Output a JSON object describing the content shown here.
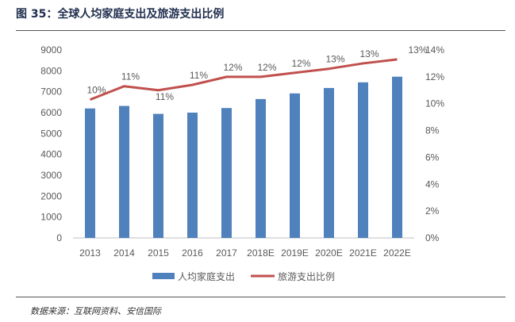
{
  "figure": {
    "title": "图 35：全球人均家庭支出及旅游支出比例",
    "source": "数据来源：互联网资料、安信国际"
  },
  "chart_data": {
    "type": "bar",
    "categories": [
      "2013",
      "2014",
      "2015",
      "2016",
      "2017",
      "2018E",
      "2019E",
      "2020E",
      "2021E",
      "2022E"
    ],
    "series": [
      {
        "name": "人均家庭支出",
        "type": "bar",
        "axis": "left",
        "color": "#4f81bd",
        "values": [
          6200,
          6320,
          5940,
          6000,
          6220,
          6650,
          6920,
          7180,
          7450,
          7720
        ]
      },
      {
        "name": "旅游支出比例",
        "type": "line",
        "axis": "right",
        "color": "#c0504d",
        "values": [
          10.3,
          11.3,
          11.0,
          11.4,
          12.0,
          12.0,
          12.3,
          12.6,
          13.0,
          13.3
        ],
        "data_labels": [
          "10%",
          "11%",
          "11%",
          "11%",
          "12%",
          "12%",
          "12%",
          "13%",
          "13%",
          "13%"
        ]
      }
    ],
    "y_left": {
      "min": 0,
      "max": 9000,
      "ticks": [
        "0",
        "1000",
        "2000",
        "3000",
        "4000",
        "5000",
        "6000",
        "7000",
        "8000",
        "9000"
      ]
    },
    "y_right": {
      "min": 0,
      "max": 14,
      "ticks": [
        "0%",
        "2%",
        "4%",
        "6%",
        "8%",
        "10%",
        "12%",
        "14%"
      ]
    },
    "grid": false,
    "legend_position": "bottom"
  }
}
